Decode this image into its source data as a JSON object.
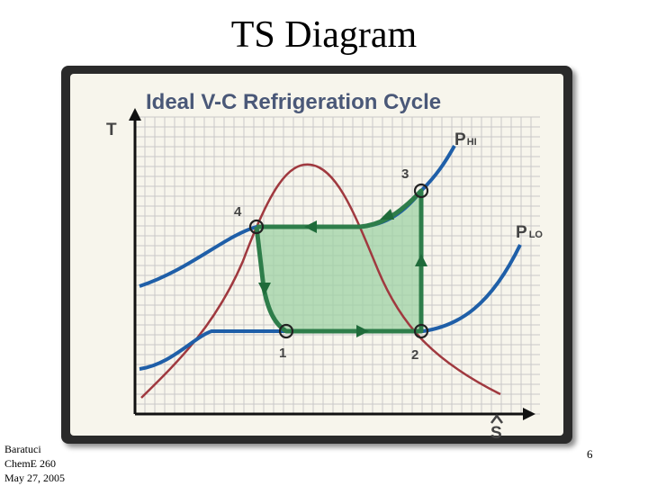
{
  "slide": {
    "title": "TS Diagram",
    "page_number": "6",
    "footer": [
      "Baratuci",
      "ChemE 260",
      "May 27, 2005"
    ]
  },
  "diagram": {
    "title": "Ideal V-C Refrigeration Cycle",
    "y_axis_label": "T",
    "x_axis_label": "S",
    "isobars": [
      {
        "main": "P",
        "sub": "HI"
      },
      {
        "main": "P",
        "sub": "LO"
      }
    ],
    "states": [
      "1",
      "2",
      "3",
      "4"
    ]
  }
}
